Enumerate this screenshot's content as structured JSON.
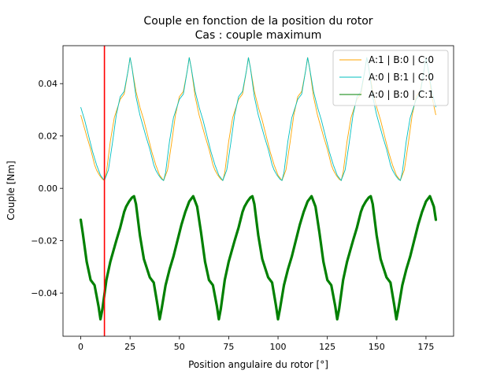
{
  "chart_data": {
    "type": "line",
    "title": "Couple en fonction de la position du rotor",
    "subtitle": "Cas : couple maximum",
    "xlabel": "Position angulaire du rotor [°]",
    "ylabel": "Couple [Nm]",
    "xlim": [
      -9,
      189
    ],
    "ylim": [
      -0.0565,
      0.0545
    ],
    "x_ticks": [
      0,
      25,
      50,
      75,
      100,
      125,
      150,
      175
    ],
    "y_ticks": [
      -0.04,
      -0.02,
      0.0,
      0.02,
      0.04
    ],
    "x_tick_labels": [
      "0",
      "25",
      "50",
      "75",
      "100",
      "125",
      "150",
      "175"
    ],
    "y_tick_labels": [
      "−0.04",
      "−0.02",
      "0.00",
      "0.02",
      "0.04"
    ],
    "grid": false,
    "legend_position": "top-right",
    "period_deg": 60,
    "profile_x": [
      0,
      3,
      5,
      6,
      7,
      8,
      9.5,
      11,
      12,
      13,
      15,
      17,
      20,
      22,
      24,
      25,
      26,
      28,
      30,
      32,
      34,
      36,
      38,
      40,
      42,
      44,
      46,
      48,
      50,
      52,
      54,
      55,
      56,
      58,
      60
    ],
    "profile_y": [
      -0.028,
      -0.02,
      -0.015,
      -0.012,
      -0.009,
      -0.007,
      -0.005,
      -0.0035,
      -0.003,
      -0.006,
      -0.018,
      -0.027,
      -0.034,
      -0.036,
      -0.045,
      -0.05,
      -0.046,
      -0.037,
      -0.031,
      -0.026,
      -0.02,
      -0.014,
      -0.009,
      -0.005,
      -0.003,
      -0.007,
      -0.017,
      -0.028,
      -0.035,
      -0.037,
      -0.045,
      -0.05,
      -0.046,
      -0.035,
      -0.028
    ],
    "series": [
      {
        "name": "A:1 | B:0 | C:0",
        "color": "#ffa500",
        "shift_deg": 0,
        "negate": true
      },
      {
        "name": "A:0 | B:1 | C:0",
        "color": "#00bfbf",
        "shift_deg": 30,
        "negate": true
      },
      {
        "name": "A:0 | B:0 | C:1",
        "color": "#008000",
        "shift_deg": 15,
        "negate": false
      }
    ],
    "envelope": {
      "x_start": 0,
      "x_end": 180
    },
    "marker_line": {
      "x": 12,
      "color": "#ff0000"
    }
  }
}
